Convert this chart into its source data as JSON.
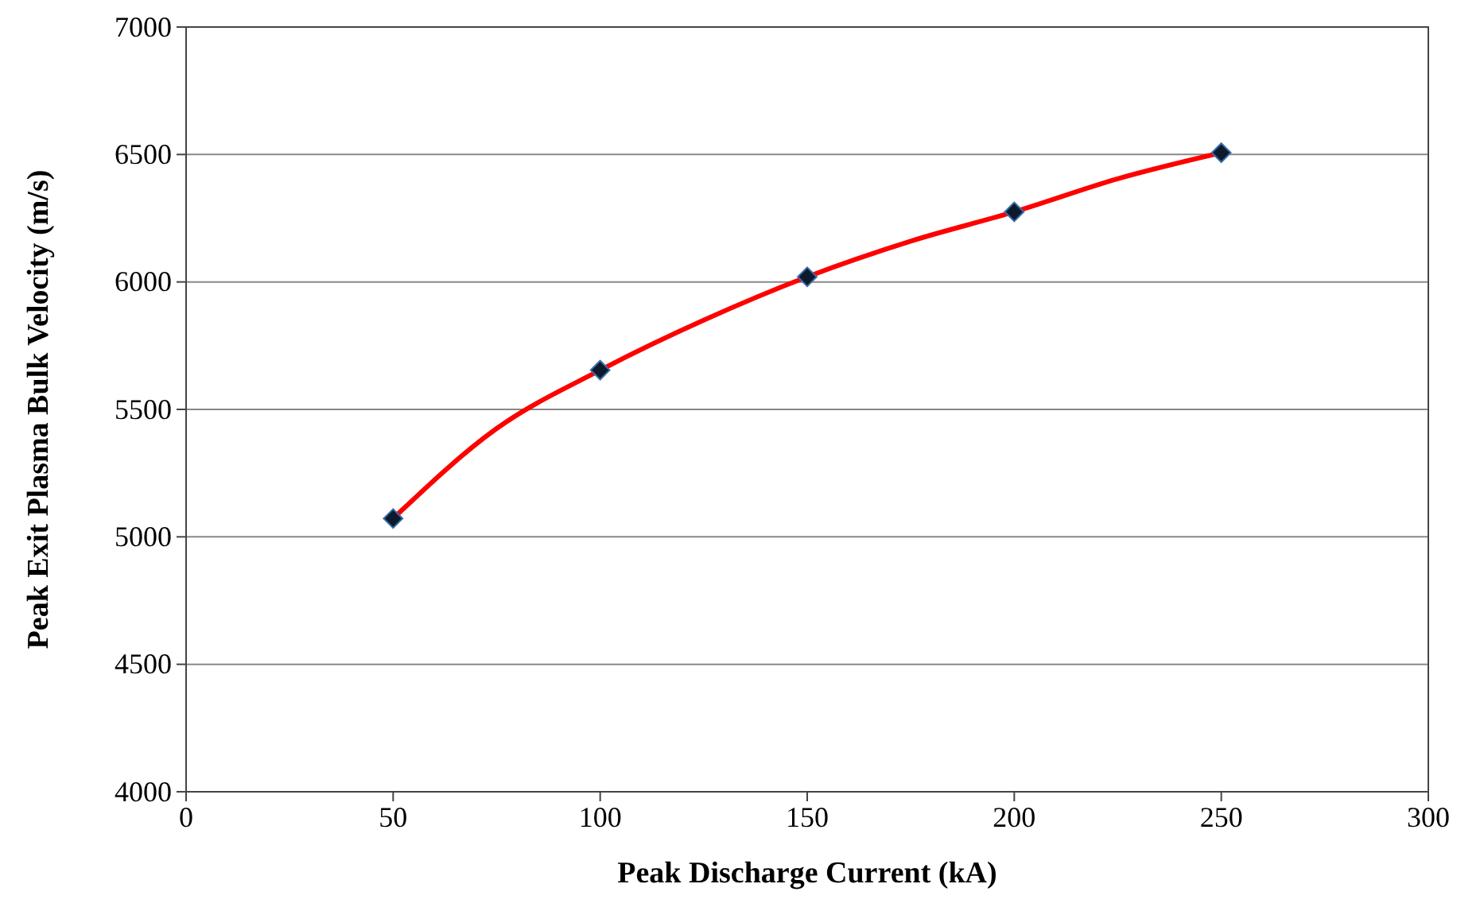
{
  "chart_data": {
    "type": "scatter",
    "xlabel": "Peak Discharge Current  (kA)",
    "ylabel": "Peak Exit Plasma Bulk Velocity (m/s)",
    "xlim": [
      0,
      300
    ],
    "xticks": [
      0,
      50,
      100,
      150,
      200,
      250,
      300
    ],
    "ylim": [
      4000,
      7000
    ],
    "yticks": [
      4000,
      4500,
      5000,
      5500,
      6000,
      6500,
      7000
    ],
    "grid": "y",
    "series": [
      {
        "type": "line",
        "color": "#ff0000",
        "marker": "none",
        "line_style": "solid",
        "x": [
          50,
          75,
          100,
          125,
          150,
          175,
          200,
          225,
          250
        ],
        "values": [
          5072,
          5425,
          5654,
          5850,
          6020,
          6160,
          6275,
          6405,
          6507
        ]
      },
      {
        "type": "scatter",
        "color": "#0d1a2e",
        "marker": "diamond",
        "x": [
          50,
          100,
          150,
          200,
          250
        ],
        "values": [
          5072,
          5654,
          6020,
          6275,
          6507
        ]
      }
    ]
  }
}
